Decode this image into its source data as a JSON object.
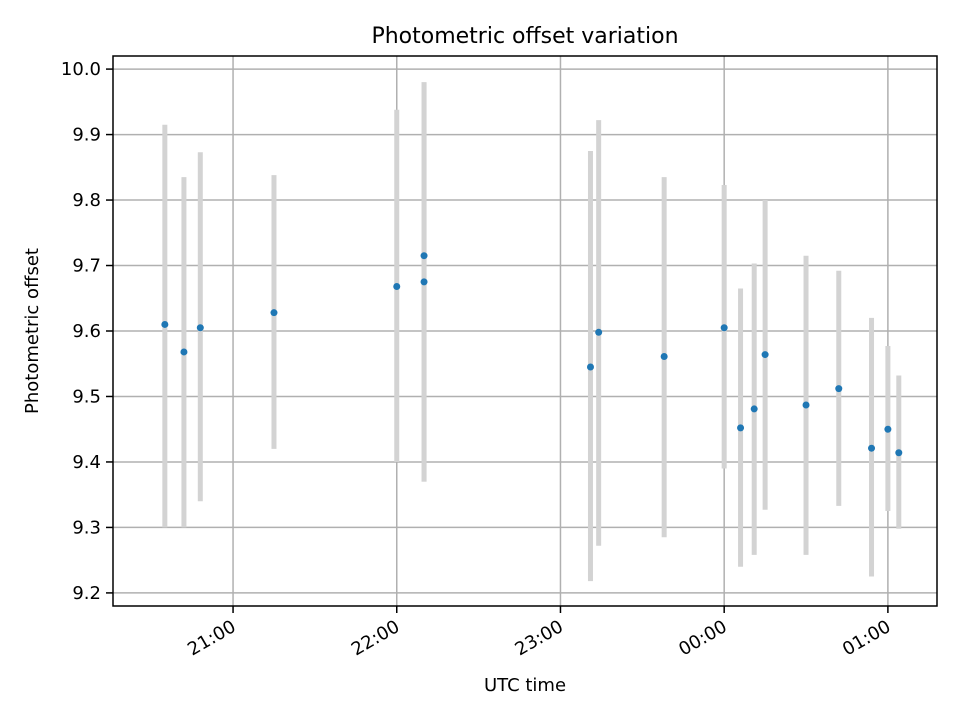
{
  "chart_data": {
    "type": "scatter",
    "title": "Photometric offset variation",
    "xlabel": "UTC time",
    "ylabel": "Photometric offset",
    "x_ticks": [
      "21:00",
      "22:00",
      "23:00",
      "00:00",
      "01:00"
    ],
    "x_tick_times": [
      "21:00",
      "22:00",
      "23:00",
      "24:00",
      "25:00"
    ],
    "xlim": [
      "20:16",
      "25:18"
    ],
    "ylim": [
      9.18,
      10.02
    ],
    "y_ticks": [
      9.2,
      9.3,
      9.4,
      9.5,
      9.6,
      9.7,
      9.8,
      9.9,
      10.0
    ],
    "grid": true,
    "points": [
      {
        "time": "20:35",
        "y": 9.61,
        "err_low": 9.3,
        "err_high": 9.915
      },
      {
        "time": "20:42",
        "y": 9.568,
        "err_low": 9.3,
        "err_high": 9.835
      },
      {
        "time": "20:48",
        "y": 9.605,
        "err_low": 9.34,
        "err_high": 9.873
      },
      {
        "time": "21:15",
        "y": 9.628,
        "err_low": 9.42,
        "err_high": 9.838
      },
      {
        "time": "22:00",
        "y": 9.668,
        "err_low": 9.4,
        "err_high": 9.938
      },
      {
        "time": "22:10",
        "y": 9.715,
        "err_low": 9.37,
        "err_high": 9.98
      },
      {
        "time": "22:10",
        "y": 9.675,
        "err_low": 9.37,
        "err_high": 9.98
      },
      {
        "time": "23:11",
        "y": 9.545,
        "err_low": 9.218,
        "err_high": 9.875
      },
      {
        "time": "23:14",
        "y": 9.598,
        "err_low": 9.272,
        "err_high": 9.922
      },
      {
        "time": "23:38",
        "y": 9.561,
        "err_low": 9.285,
        "err_high": 9.835
      },
      {
        "time": "24:00",
        "y": 9.605,
        "err_low": 9.39,
        "err_high": 9.823
      },
      {
        "time": "24:06",
        "y": 9.452,
        "err_low": 9.24,
        "err_high": 9.665
      },
      {
        "time": "24:11",
        "y": 9.481,
        "err_low": 9.258,
        "err_high": 9.703
      },
      {
        "time": "24:15",
        "y": 9.564,
        "err_low": 9.327,
        "err_high": 9.8
      },
      {
        "time": "24:30",
        "y": 9.487,
        "err_low": 9.258,
        "err_high": 9.715
      },
      {
        "time": "24:42",
        "y": 9.512,
        "err_low": 9.333,
        "err_high": 9.692
      },
      {
        "time": "24:54",
        "y": 9.421,
        "err_low": 9.225,
        "err_high": 9.62
      },
      {
        "time": "25:00",
        "y": 9.45,
        "err_low": 9.325,
        "err_high": 9.577
      },
      {
        "time": "25:04",
        "y": 9.414,
        "err_low": 9.298,
        "err_high": 9.532
      }
    ],
    "colors": {
      "point": "#1f77b4",
      "errorbar": "#d3d3d3",
      "grid": "#b0b0b0"
    }
  }
}
